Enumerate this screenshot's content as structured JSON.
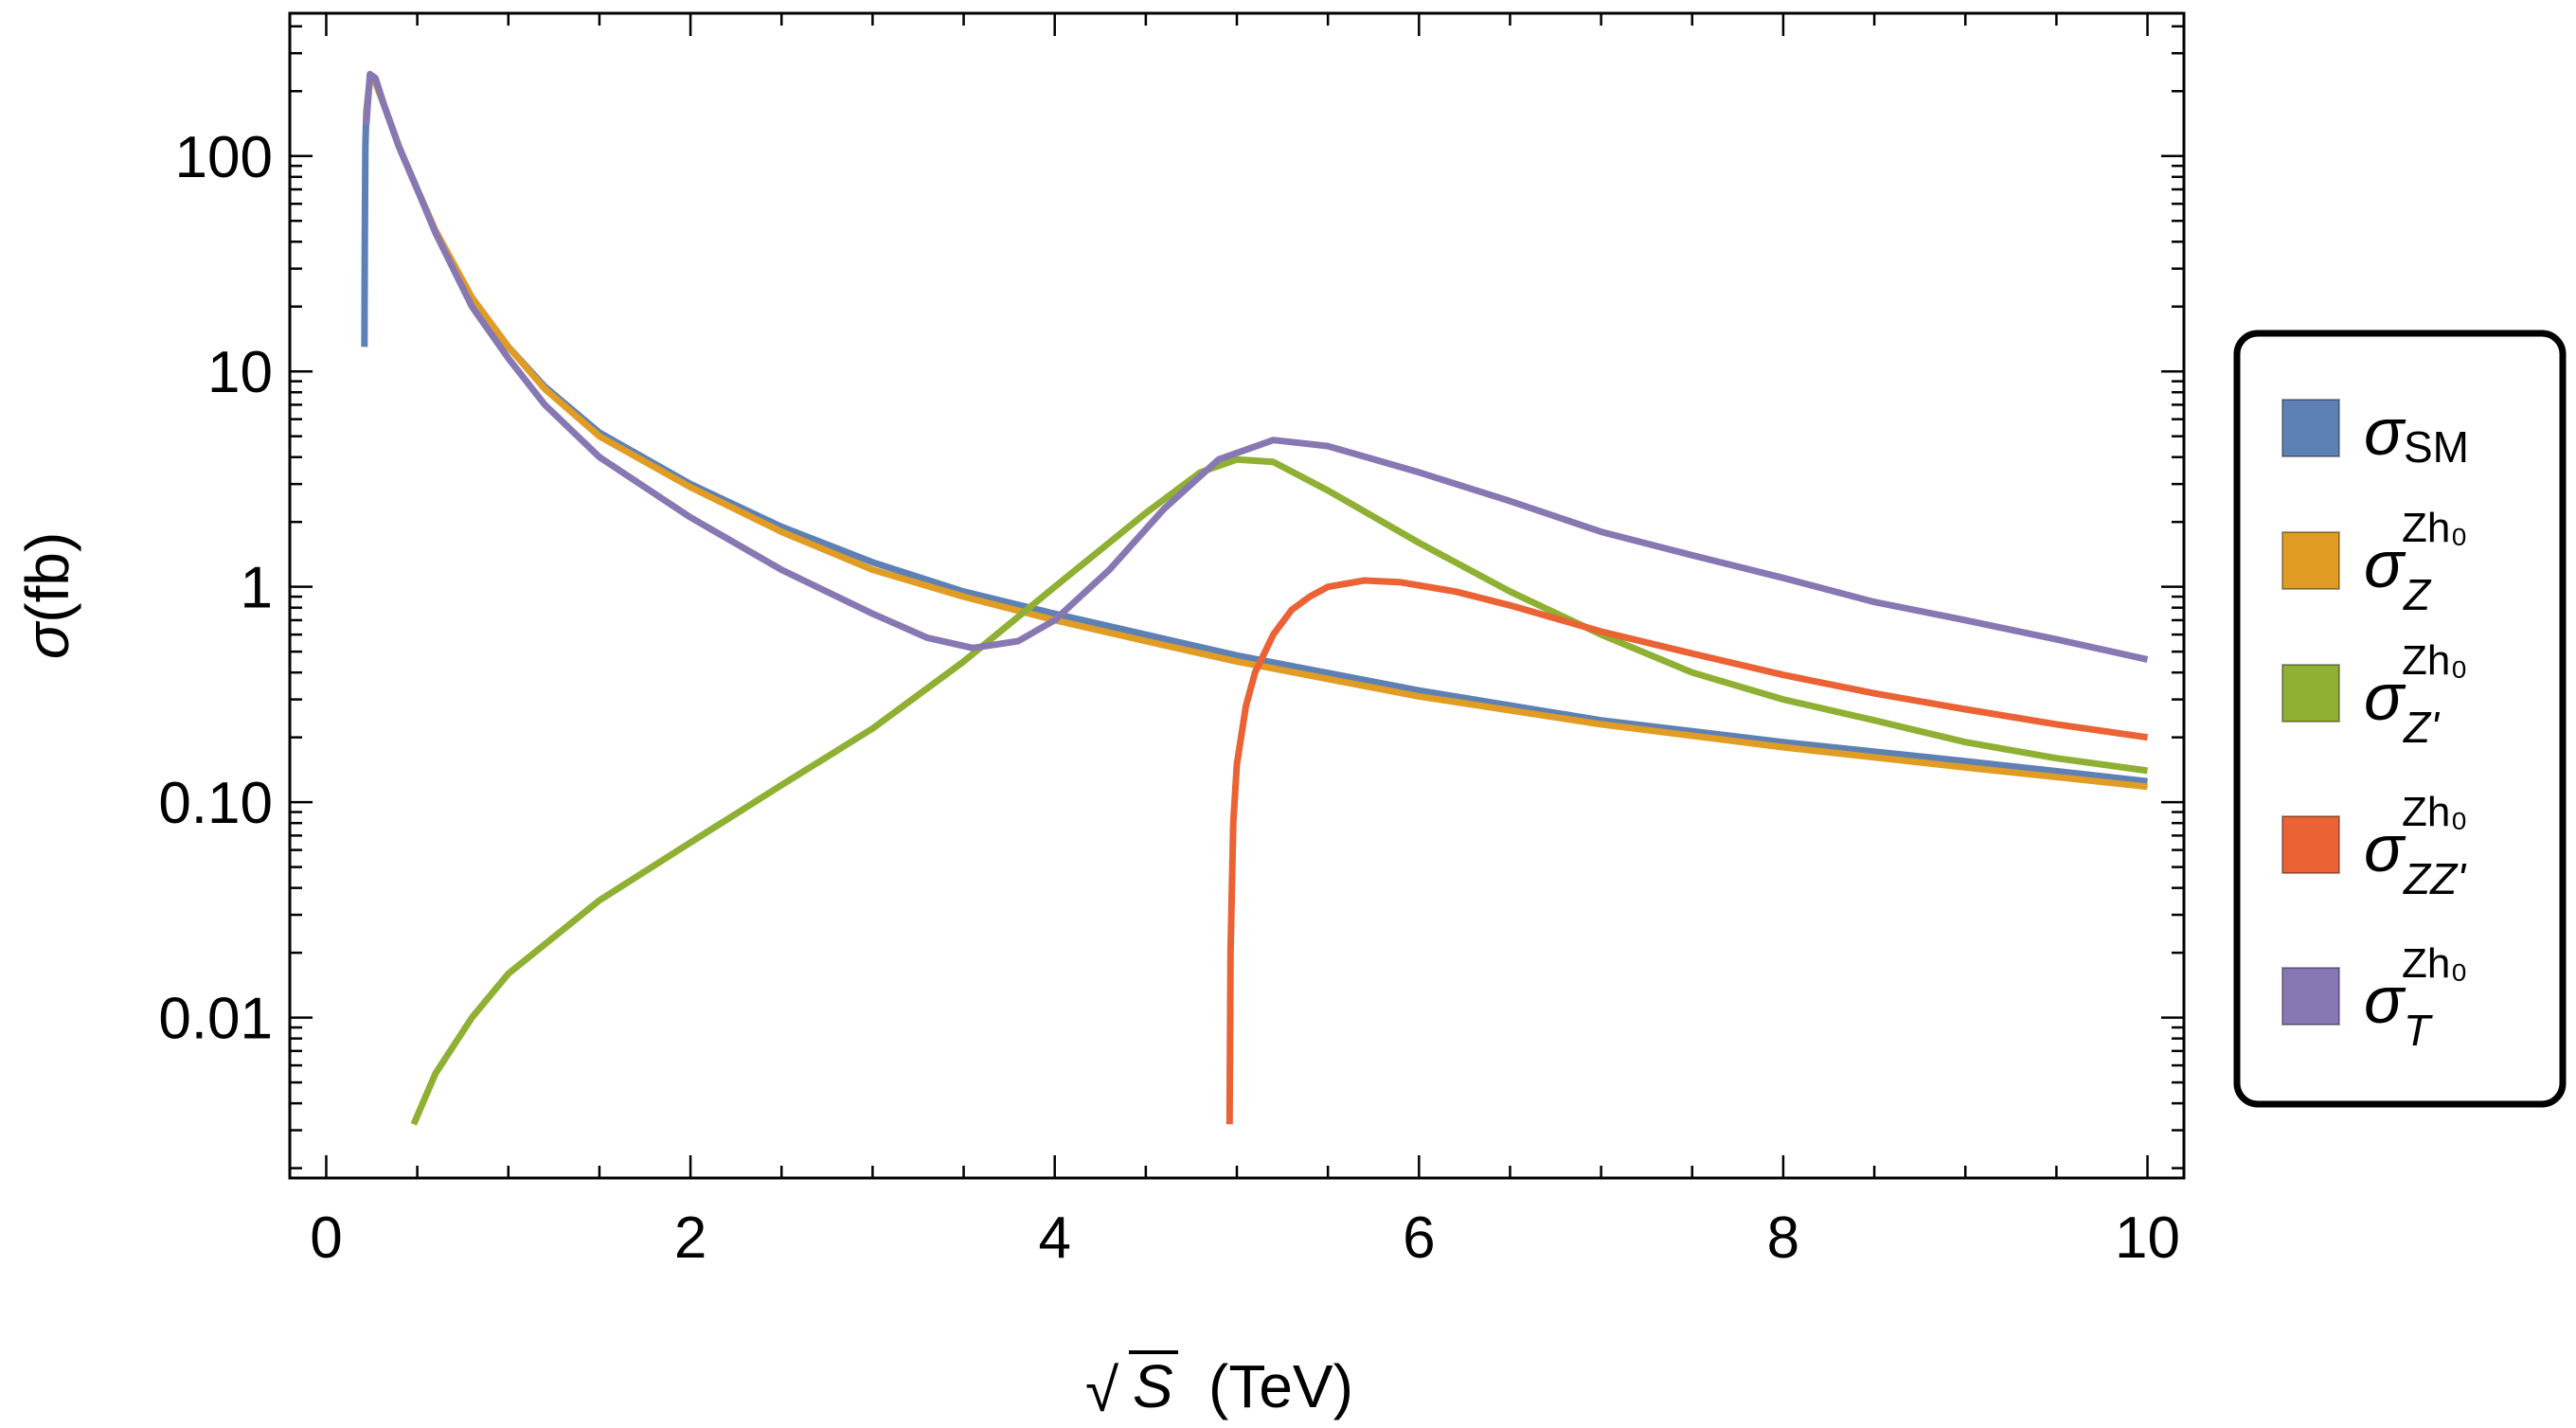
{
  "chart_data": {
    "type": "line",
    "xlabel": "√S (TeV)",
    "xlabel_parts": {
      "radical": "√",
      "var": "S",
      "unit": "(TeV)"
    },
    "ylabel": "σ(fb)",
    "ylabel_parts": {
      "sym": "σ",
      "unit": "(fb)"
    },
    "x_scale": "linear",
    "y_scale": "log",
    "xlim": [
      -0.2,
      10.2
    ],
    "ylim": [
      0.0018,
      460
    ],
    "x_ticks": [
      0,
      2,
      4,
      6,
      8,
      10
    ],
    "x_tick_labels": [
      "0",
      "2",
      "4",
      "6",
      "8",
      "10"
    ],
    "y_ticks": [
      0.01,
      0.1,
      1,
      10,
      100
    ],
    "y_tick_labels": [
      "0.01",
      "0.10",
      "1",
      "10",
      "100"
    ],
    "grid": false,
    "legend_position": "right",
    "series": [
      {
        "key": "sm",
        "legend": {
          "sym": "σ",
          "sub": "SM",
          "sup": ""
        },
        "color": "#5E81B5",
        "points": [
          [
            0.21,
            13
          ],
          [
            0.212,
            40
          ],
          [
            0.215,
            110
          ],
          [
            0.22,
            160
          ],
          [
            0.24,
            230
          ],
          [
            0.27,
            220
          ],
          [
            0.32,
            170
          ],
          [
            0.4,
            110
          ],
          [
            0.5,
            70
          ],
          [
            0.6,
            45
          ],
          [
            0.8,
            22
          ],
          [
            1.0,
            13
          ],
          [
            1.2,
            8.5
          ],
          [
            1.5,
            5.2
          ],
          [
            2.0,
            3.0
          ],
          [
            2.5,
            1.9
          ],
          [
            3.0,
            1.3
          ],
          [
            3.5,
            0.95
          ],
          [
            4.0,
            0.75
          ],
          [
            4.5,
            0.6
          ],
          [
            5.0,
            0.48
          ],
          [
            6.0,
            0.33
          ],
          [
            7.0,
            0.24
          ],
          [
            8.0,
            0.19
          ],
          [
            9.0,
            0.155
          ],
          [
            10.0,
            0.125
          ]
        ]
      },
      {
        "key": "z",
        "legend": {
          "sym": "σ",
          "sub": "Z",
          "sup": "Zh₀"
        },
        "color": "#E19C24",
        "points": [
          [
            0.22,
            150
          ],
          [
            0.24,
            230
          ],
          [
            0.27,
            220
          ],
          [
            0.32,
            170
          ],
          [
            0.4,
            110
          ],
          [
            0.5,
            70
          ],
          [
            0.6,
            45
          ],
          [
            0.8,
            22
          ],
          [
            1.0,
            13
          ],
          [
            1.2,
            8.3
          ],
          [
            1.5,
            5.0
          ],
          [
            2.0,
            2.9
          ],
          [
            2.5,
            1.8
          ],
          [
            3.0,
            1.2
          ],
          [
            3.5,
            0.9
          ],
          [
            4.0,
            0.7
          ],
          [
            4.5,
            0.56
          ],
          [
            5.0,
            0.45
          ],
          [
            6.0,
            0.31
          ],
          [
            7.0,
            0.23
          ],
          [
            8.0,
            0.18
          ],
          [
            9.0,
            0.145
          ],
          [
            10.0,
            0.118
          ]
        ]
      },
      {
        "key": "zp",
        "legend": {
          "sym": "σ",
          "sub": "Z'",
          "sup": "Zh₀"
        },
        "color": "#8FB032",
        "points": [
          [
            0.48,
            0.0032
          ],
          [
            0.6,
            0.0055
          ],
          [
            0.8,
            0.01
          ],
          [
            1.0,
            0.016
          ],
          [
            1.5,
            0.035
          ],
          [
            2.0,
            0.065
          ],
          [
            2.5,
            0.12
          ],
          [
            3.0,
            0.22
          ],
          [
            3.5,
            0.45
          ],
          [
            4.0,
            1.0
          ],
          [
            4.5,
            2.2
          ],
          [
            4.8,
            3.4
          ],
          [
            5.0,
            3.9
          ],
          [
            5.2,
            3.8
          ],
          [
            5.5,
            2.8
          ],
          [
            6.0,
            1.6
          ],
          [
            6.5,
            0.95
          ],
          [
            7.0,
            0.6
          ],
          [
            7.5,
            0.4
          ],
          [
            8.0,
            0.3
          ],
          [
            8.5,
            0.24
          ],
          [
            9.0,
            0.19
          ],
          [
            9.5,
            0.16
          ],
          [
            10.0,
            0.14
          ]
        ]
      },
      {
        "key": "zzp",
        "legend": {
          "sym": "σ",
          "sub": "ZZ'",
          "sup": "Zh₀"
        },
        "color": "#EB6235",
        "points": [
          [
            4.96,
            0.0032
          ],
          [
            4.965,
            0.02
          ],
          [
            4.98,
            0.08
          ],
          [
            5.0,
            0.15
          ],
          [
            5.05,
            0.28
          ],
          [
            5.1,
            0.4
          ],
          [
            5.2,
            0.6
          ],
          [
            5.3,
            0.78
          ],
          [
            5.4,
            0.9
          ],
          [
            5.5,
            1.0
          ],
          [
            5.7,
            1.07
          ],
          [
            5.9,
            1.05
          ],
          [
            6.2,
            0.95
          ],
          [
            6.5,
            0.82
          ],
          [
            7.0,
            0.62
          ],
          [
            7.5,
            0.49
          ],
          [
            8.0,
            0.39
          ],
          [
            8.5,
            0.32
          ],
          [
            9.0,
            0.27
          ],
          [
            9.5,
            0.23
          ],
          [
            10.0,
            0.2
          ]
        ]
      },
      {
        "key": "t",
        "legend": {
          "sym": "σ",
          "sub": "T",
          "sup": "Zh₀"
        },
        "color": "#8778B3",
        "points": [
          [
            0.22,
            140
          ],
          [
            0.24,
            240
          ],
          [
            0.27,
            230
          ],
          [
            0.32,
            170
          ],
          [
            0.4,
            110
          ],
          [
            0.5,
            70
          ],
          [
            0.6,
            44
          ],
          [
            0.8,
            20
          ],
          [
            1.0,
            11.5
          ],
          [
            1.2,
            7.0
          ],
          [
            1.5,
            4.0
          ],
          [
            2.0,
            2.1
          ],
          [
            2.5,
            1.2
          ],
          [
            3.0,
            0.75
          ],
          [
            3.3,
            0.58
          ],
          [
            3.55,
            0.52
          ],
          [
            3.8,
            0.56
          ],
          [
            4.0,
            0.7
          ],
          [
            4.3,
            1.2
          ],
          [
            4.6,
            2.3
          ],
          [
            4.9,
            3.9
          ],
          [
            5.2,
            4.8
          ],
          [
            5.5,
            4.5
          ],
          [
            6.0,
            3.4
          ],
          [
            6.5,
            2.5
          ],
          [
            7.0,
            1.8
          ],
          [
            7.5,
            1.4
          ],
          [
            8.0,
            1.1
          ],
          [
            8.5,
            0.85
          ],
          [
            9.0,
            0.7
          ],
          [
            9.5,
            0.57
          ],
          [
            10.0,
            0.46
          ]
        ]
      }
    ]
  }
}
